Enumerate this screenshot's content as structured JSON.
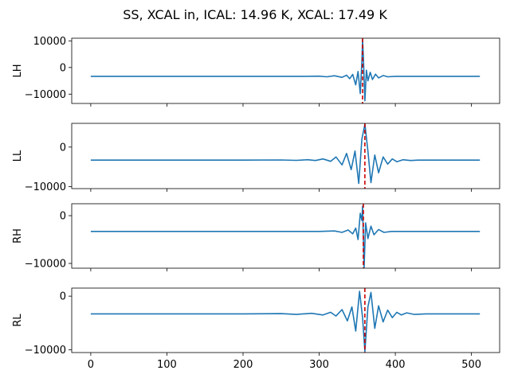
{
  "chart_data": {
    "type": "line",
    "title": "SS, XCAL in, ICAL: 14.96 K, XCAL: 17.49 K",
    "xlabel": "",
    "xlim": [
      -25,
      537
    ],
    "x_ticks": [
      0,
      100,
      200,
      300,
      400,
      500
    ],
    "line_color": "#1f77b4",
    "marker_color": "#cc0000",
    "panels": [
      {
        "name": "LH",
        "ylabel": "LH",
        "ylim": [
          -13500,
          11000
        ],
        "y_ticks": [
          10000,
          0,
          -10000
        ],
        "baseline": -3300,
        "marker_x": 357,
        "x": [
          0,
          100,
          200,
          280,
          300,
          310,
          320,
          330,
          336,
          340,
          344,
          348,
          351,
          354,
          356,
          357,
          358,
          360,
          362,
          364,
          367,
          370,
          374,
          378,
          384,
          390,
          400,
          420,
          450,
          511
        ],
        "values": [
          -3300,
          -3300,
          -3300,
          -3300,
          -3250,
          -3500,
          -3100,
          -3700,
          -2900,
          -4200,
          -2600,
          -6500,
          -1500,
          -9800,
          2000,
          10500,
          4000,
          -12500,
          -1000,
          -5000,
          -1800,
          -4500,
          -2500,
          -3900,
          -3000,
          -3500,
          -3300,
          -3300,
          -3300,
          -3300
        ]
      },
      {
        "name": "LL",
        "ylabel": "LL",
        "ylim": [
          -10500,
          6000
        ],
        "y_ticks": [
          0,
          -10000
        ],
        "baseline": -3300,
        "marker_x": 360,
        "x": [
          0,
          100,
          200,
          250,
          270,
          285,
          295,
          305,
          315,
          322,
          330,
          336,
          342,
          347,
          352,
          356,
          360,
          364,
          368,
          373,
          378,
          384,
          390,
          396,
          402,
          410,
          420,
          430,
          450,
          511
        ],
        "values": [
          -3300,
          -3300,
          -3300,
          -3250,
          -3350,
          -3200,
          -3400,
          -3000,
          -3600,
          -2500,
          -4500,
          -1600,
          -5700,
          -1000,
          -9200,
          2000,
          5800,
          -1000,
          -9000,
          -2000,
          -6500,
          -2500,
          -4300,
          -3000,
          -3700,
          -3200,
          -3400,
          -3300,
          -3300,
          -3300
        ]
      },
      {
        "name": "RH",
        "ylabel": "RH",
        "ylim": [
          -11000,
          2500
        ],
        "y_ticks": [
          0,
          -10000
        ],
        "baseline": -3300,
        "marker_x": 358,
        "x": [
          0,
          100,
          200,
          300,
          320,
          330,
          338,
          344,
          348,
          351,
          354,
          356,
          357,
          358,
          359,
          361,
          364,
          368,
          372,
          378,
          385,
          395,
          420,
          511
        ],
        "values": [
          -3300,
          -3300,
          -3300,
          -3300,
          -3200,
          -3500,
          -3000,
          -3800,
          -2600,
          -5000,
          500,
          -1000,
          2000,
          -5000,
          -11000,
          -1500,
          -4800,
          -2200,
          -4000,
          -2900,
          -3500,
          -3300,
          -3300,
          -3300
        ]
      },
      {
        "name": "RL",
        "ylabel": "RL",
        "ylim": [
          -10500,
          1500
        ],
        "y_ticks": [
          0,
          -10000
        ],
        "baseline": -3300,
        "marker_x": 360,
        "x": [
          0,
          100,
          200,
          250,
          270,
          290,
          305,
          315,
          322,
          330,
          337,
          343,
          348,
          353,
          357,
          360,
          364,
          368,
          373,
          378,
          384,
          390,
          396,
          402,
          408,
          415,
          425,
          440,
          460,
          511
        ],
        "values": [
          -3300,
          -3300,
          -3300,
          -3250,
          -3400,
          -3200,
          -3500,
          -3000,
          -3700,
          -2500,
          -4600,
          -2000,
          -6500,
          900,
          -4000,
          -10300,
          -2000,
          700,
          -6000,
          -1800,
          -4800,
          -2600,
          -4000,
          -3000,
          -3500,
          -3100,
          -3400,
          -3300,
          -3300,
          -3300
        ]
      }
    ]
  }
}
